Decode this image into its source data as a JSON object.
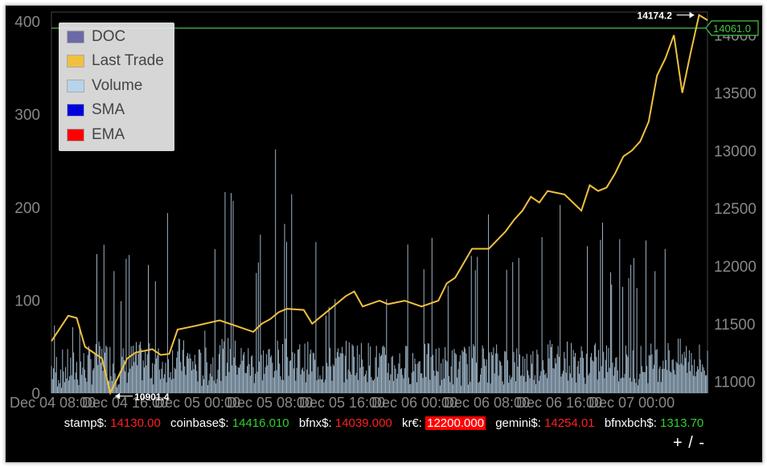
{
  "legend": [
    {
      "label": "DOC",
      "color": "#6a6aa8"
    },
    {
      "label": "Last Trade",
      "color": "#f0c040"
    },
    {
      "label": "Volume",
      "color": "#b8d4ea"
    },
    {
      "label": "SMA",
      "color": "#0000dd"
    },
    {
      "label": "EMA",
      "color": "#ff0000"
    }
  ],
  "chart_data": {
    "type": "line",
    "x_tick_labels": [
      "Dec 04 08:00",
      "Dec 04 16:00",
      "Dec 05 00:00",
      "Dec 05 08:00",
      "Dec 05 16:00",
      "Dec 06 00:00",
      "Dec 06 08:00",
      "Dec 06 16:00",
      "Dec 07 00:00"
    ],
    "x_range_hours": [
      0,
      78
    ],
    "y_left": {
      "label": "",
      "ticks": [
        0,
        100,
        200,
        300,
        400
      ],
      "range": [
        0,
        410
      ]
    },
    "y_right": {
      "label": "",
      "ticks": [
        11000,
        11500,
        12000,
        12500,
        13000,
        13500,
        14000
      ],
      "range": [
        10900,
        14200
      ]
    },
    "grid": false,
    "legend_position": "top-left",
    "series": [
      {
        "name": "Last Trade",
        "axis": "right",
        "color": "#f0c040",
        "points": [
          [
            0,
            11350
          ],
          [
            2,
            11570
          ],
          [
            3,
            11550
          ],
          [
            4,
            11300
          ],
          [
            6,
            11200
          ],
          [
            7,
            10901.4
          ],
          [
            8,
            11050
          ],
          [
            9,
            11200
          ],
          [
            10,
            11250
          ],
          [
            12,
            11280
          ],
          [
            13,
            11230
          ],
          [
            14,
            11240
          ],
          [
            15,
            11450
          ],
          [
            17,
            11480
          ],
          [
            20,
            11530
          ],
          [
            22,
            11480
          ],
          [
            24,
            11430
          ],
          [
            25,
            11500
          ],
          [
            26,
            11540
          ],
          [
            27,
            11600
          ],
          [
            28,
            11630
          ],
          [
            30,
            11620
          ],
          [
            31,
            11500
          ],
          [
            32,
            11560
          ],
          [
            34,
            11680
          ],
          [
            35,
            11740
          ],
          [
            36,
            11780
          ],
          [
            37,
            11650
          ],
          [
            39,
            11700
          ],
          [
            40,
            11670
          ],
          [
            42,
            11700
          ],
          [
            44,
            11650
          ],
          [
            46,
            11700
          ],
          [
            47,
            11850
          ],
          [
            48,
            11900
          ],
          [
            50,
            12150
          ],
          [
            52,
            12150
          ],
          [
            54,
            12300
          ],
          [
            55,
            12400
          ],
          [
            56,
            12480
          ],
          [
            57,
            12600
          ],
          [
            58,
            12550
          ],
          [
            59,
            12650
          ],
          [
            61,
            12620
          ],
          [
            63,
            12480
          ],
          [
            64,
            12700
          ],
          [
            65,
            12650
          ],
          [
            66,
            12680
          ],
          [
            67,
            12800
          ],
          [
            68,
            12950
          ],
          [
            69,
            13000
          ],
          [
            70,
            13080
          ],
          [
            71,
            13250
          ],
          [
            72,
            13650
          ],
          [
            73,
            13800
          ],
          [
            74,
            14000
          ],
          [
            75,
            13500
          ],
          [
            76,
            13850
          ],
          [
            77,
            14174.2
          ],
          [
            78,
            14130
          ]
        ]
      },
      {
        "name": "Volume",
        "axis": "left",
        "color": "#b8d4ea",
        "points": [
          [
            0,
            80
          ],
          [
            2,
            60
          ],
          [
            4,
            110
          ],
          [
            6,
            240
          ],
          [
            7,
            245
          ],
          [
            8,
            90
          ],
          [
            10,
            230
          ],
          [
            13,
            140
          ],
          [
            15,
            330
          ],
          [
            18,
            70
          ],
          [
            21,
            330
          ],
          [
            24,
            150
          ],
          [
            27,
            280
          ],
          [
            30,
            240
          ],
          [
            33,
            110
          ],
          [
            36,
            300
          ],
          [
            40,
            130
          ],
          [
            44,
            200
          ],
          [
            48,
            120
          ],
          [
            51,
            210
          ],
          [
            54,
            170
          ],
          [
            57,
            140
          ],
          [
            60,
            340
          ],
          [
            63,
            180
          ],
          [
            66,
            200
          ],
          [
            69,
            150
          ],
          [
            72,
            220
          ],
          [
            74,
            280
          ],
          [
            76,
            290
          ],
          [
            78,
            120
          ]
        ]
      }
    ],
    "horizontal_line": {
      "axis": "right",
      "value": 14061.0,
      "color": "#4ac24a"
    },
    "annotations": [
      {
        "text": "14174.2",
        "x": 77,
        "y": 14174.2,
        "arrow": "right"
      },
      {
        "text": "10901.4",
        "x": 7,
        "y": 10901.4,
        "arrow": "left"
      }
    ],
    "current_price_label": "14061.0"
  },
  "tickers": [
    {
      "label": "stamp$:",
      "price": "14130.00",
      "state": "down"
    },
    {
      "label": "coinbase$:",
      "price": "14416.010",
      "state": "up"
    },
    {
      "label": "bfnx$:",
      "price": "14039.000",
      "state": "down"
    },
    {
      "label": "kr€:",
      "price": "12200.000",
      "state": "hl"
    },
    {
      "label": "gemini$:",
      "price": "14254.01",
      "state": "down"
    },
    {
      "label": "bfnxbch$:",
      "price": "1313.70",
      "state": "up"
    }
  ],
  "zoom": {
    "plus": "+",
    "sep": "/",
    "minus": "-"
  }
}
